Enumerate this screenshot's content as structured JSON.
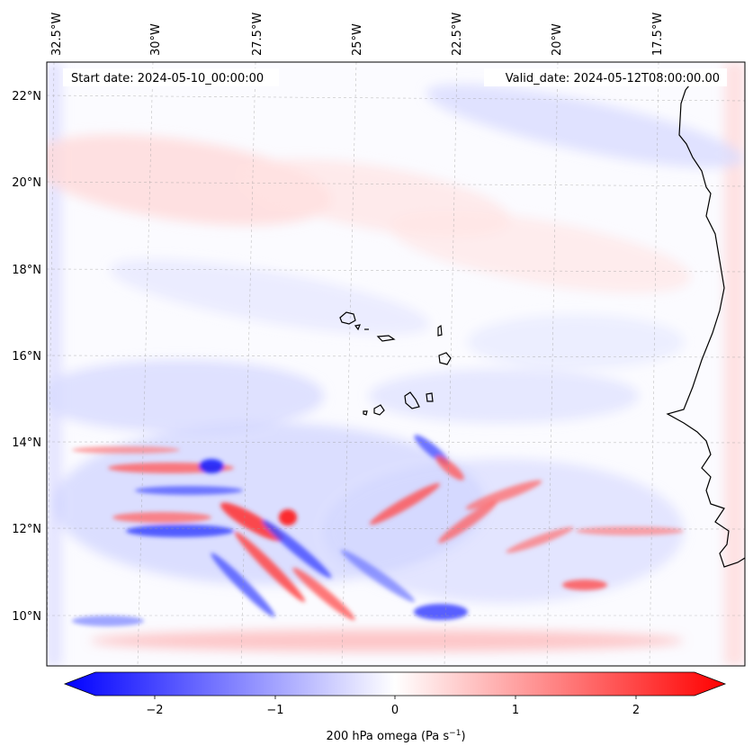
{
  "map": {
    "lon_labels": [
      "32.5°W",
      "30°W",
      "27.5°W",
      "25°W",
      "22.5°W",
      "20°W",
      "17.5°W"
    ],
    "lat_labels": [
      "22°N",
      "20°N",
      "18°N",
      "16°N",
      "14°N",
      "12°N",
      "10°N"
    ],
    "start_date_text": "Start date: 2024-05-10_00:00:00",
    "valid_date_text": "Valid_date: 2024-05-12T08:00:00.00",
    "field": "200 hPa omega",
    "region": "Cape Verde and West African coast"
  },
  "colorbar": {
    "ticks": [
      "−2",
      "−1",
      "0",
      "1",
      "2"
    ],
    "label_main": "200 hPa omega (Pa s",
    "label_sup": "−1",
    "label_end": ")",
    "range": [
      -2.6,
      2.6
    ],
    "colormap": "bwr",
    "color_low": "#0000ff",
    "color_mid": "#ffffff",
    "color_high": "#ff0000"
  }
}
